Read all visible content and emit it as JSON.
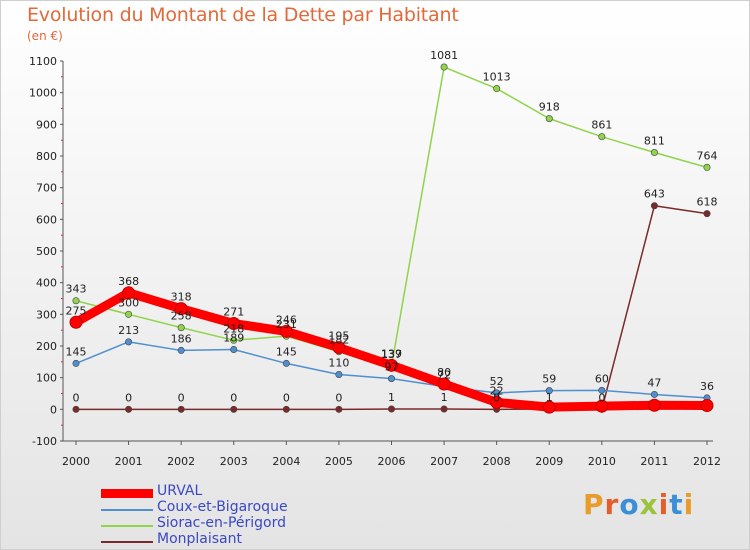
{
  "title": "Evolution du Montant de la Dette par Habitant",
  "unit": "(en €)",
  "logo": "Proxiti",
  "logo_colors": [
    "#e89c2a",
    "#e25e2b",
    "#3c8fd6",
    "#9bc33b",
    "#e25e2b",
    "#3c8fd6",
    "#e89c2a"
  ],
  "chart_data": {
    "type": "line",
    "x": [
      "2000",
      "2001",
      "2002",
      "2003",
      "2004",
      "2005",
      "2006",
      "2007",
      "2008",
      "2009",
      "2010",
      "2011",
      "2012"
    ],
    "ylim": [
      -100,
      1100
    ],
    "yticks": [
      -100,
      0,
      100,
      200,
      300,
      400,
      500,
      600,
      700,
      800,
      900,
      1000,
      1100
    ],
    "grid": false,
    "legend_position": "bottom-left",
    "series": [
      {
        "name": "URVAL",
        "color": "#ff0000",
        "values": [
          275,
          368,
          318,
          271,
          246,
          195,
          139,
          80,
          22,
          7,
          10,
          13,
          12
        ],
        "labels": [
          "275",
          "368",
          "318",
          "271",
          "246",
          "195",
          "139",
          "80",
          "22",
          "",
          "",
          "",
          ""
        ]
      },
      {
        "name": "Coux-et-Bigaroque",
        "color": "#4f8fd0",
        "values": [
          145,
          213,
          186,
          189,
          145,
          110,
          97,
          72,
          52,
          59,
          60,
          47,
          36
        ],
        "labels": [
          "145",
          "213",
          "186",
          "189",
          "145",
          "110",
          "97",
          "72",
          "52",
          "59",
          "60",
          "47",
          "36"
        ]
      },
      {
        "name": "Siorac-en-Périgord",
        "color": "#8fd44a",
        "values": [
          343,
          300,
          258,
          218,
          231,
          182,
          137,
          1081,
          1013,
          918,
          861,
          811,
          764
        ],
        "labels": [
          "343",
          "300",
          "258",
          "218",
          "231",
          "182",
          "137",
          "1081",
          "1013",
          "918",
          "861",
          "811",
          "764"
        ]
      },
      {
        "name": "Monplaisant",
        "color": "#7a2a2a",
        "values": [
          0,
          0,
          0,
          0,
          0,
          0,
          1,
          1,
          0,
          1,
          0,
          643,
          618
        ],
        "labels": [
          "0",
          "0",
          "0",
          "0",
          "0",
          "0",
          "1",
          "1",
          "0",
          "1",
          "0",
          "643",
          "618"
        ]
      }
    ]
  }
}
